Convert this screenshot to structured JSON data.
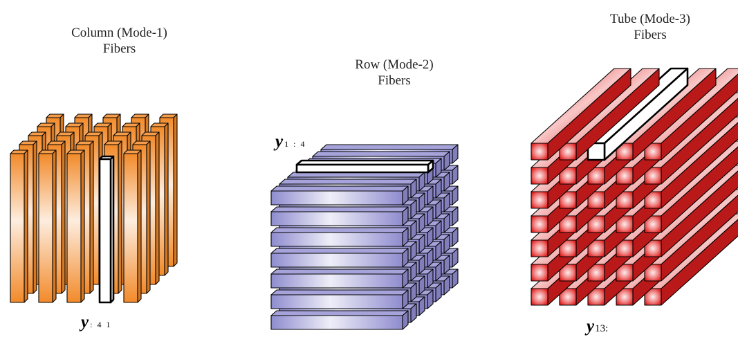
{
  "colors": {
    "column_fiber": "#f28a2a",
    "row_fiber": "#8f8ccf",
    "tube_fiber": "#e11e1e",
    "highlight_fiber": "#ffffff",
    "outline": "#000000"
  },
  "panels": [
    {
      "key": "column",
      "title_line1": "Column (Mode-1)",
      "title_line2": "Fibers",
      "label_symbol": "y",
      "label_subscript": ": 4 1"
    },
    {
      "key": "row",
      "title_line1": "Row (Mode-2)",
      "title_line2": "Fibers",
      "label_symbol": "y",
      "label_subscript": "1 : 4"
    },
    {
      "key": "tube",
      "title_line1": "Tube (Mode-3)",
      "title_line2": "Fibers",
      "label_symbol": "y",
      "label_subscript": "13:"
    }
  ]
}
